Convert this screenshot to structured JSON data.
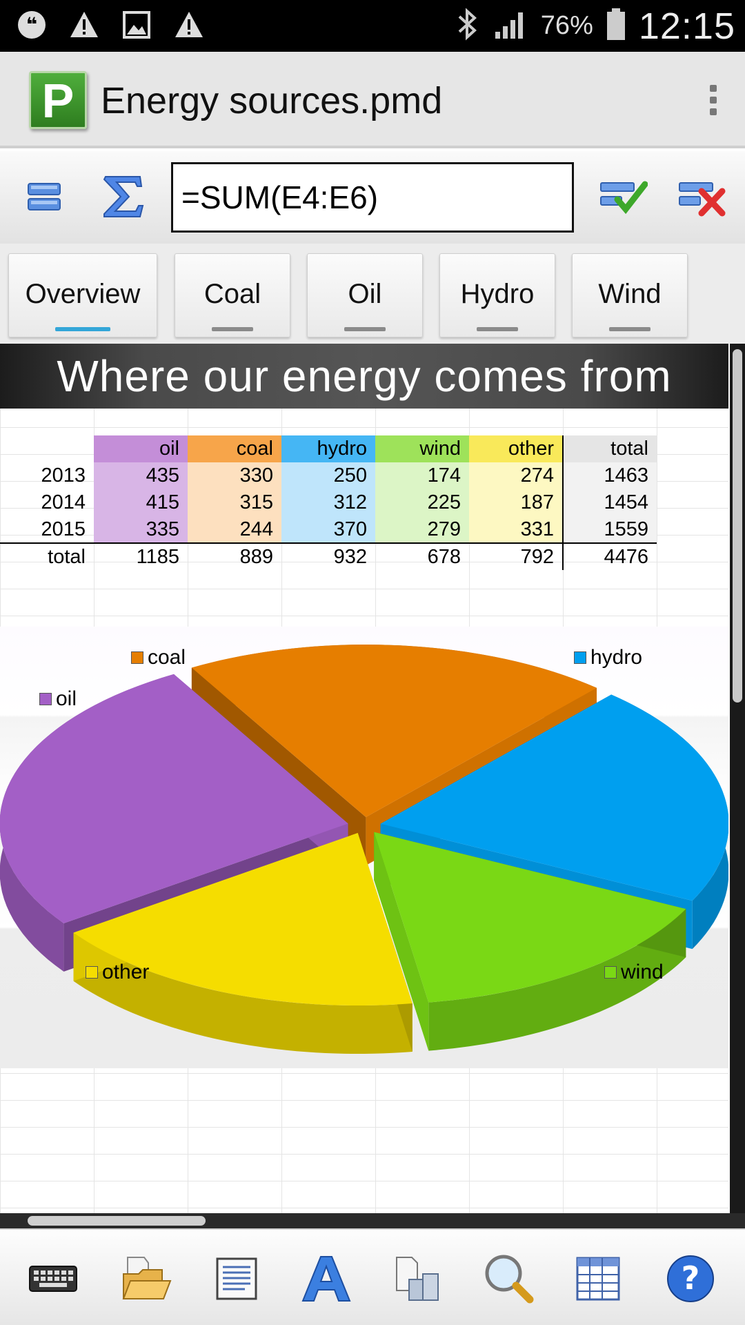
{
  "status_bar": {
    "battery_pct": "76%",
    "time": "12:15",
    "left_icons": [
      "quote-notification-icon",
      "warning-icon",
      "image-icon",
      "warning-icon"
    ],
    "right_icons": [
      "bluetooth-icon",
      "signal-icon",
      "battery-icon"
    ]
  },
  "app_bar": {
    "logo_letter": "P",
    "title": "Energy sources.pmd"
  },
  "formula_bar": {
    "value": "=SUM(E4:E6)"
  },
  "tabs": [
    {
      "label": "Overview",
      "active": true
    },
    {
      "label": "Coal",
      "active": false
    },
    {
      "label": "Oil",
      "active": false
    },
    {
      "label": "Hydro",
      "active": false
    },
    {
      "label": "Wind",
      "active": false
    }
  ],
  "sheet": {
    "title": "Where our energy comes from",
    "header": [
      "",
      "oil",
      "coal",
      "hydro",
      "wind",
      "other",
      "total"
    ],
    "rows": [
      [
        "2013",
        "435",
        "330",
        "250",
        "174",
        "274",
        "1463"
      ],
      [
        "2014",
        "415",
        "315",
        "312",
        "225",
        "187",
        "1454"
      ],
      [
        "2015",
        "335",
        "244",
        "370",
        "279",
        "331",
        "1559"
      ]
    ],
    "total_row": [
      "total",
      "1185",
      "889",
      "932",
      "678",
      "792",
      "4476"
    ]
  },
  "colors": {
    "oil": "#a35fc6",
    "coal": "#e67e00",
    "hydro": "#009fef",
    "wind": "#7ad815",
    "other": "#f5dd00",
    "total": "#e5e5e5"
  },
  "chart_data": {
    "type": "pie",
    "title": "",
    "categories": [
      "oil",
      "coal",
      "hydro",
      "wind",
      "other"
    ],
    "values": [
      1185,
      889,
      932,
      678,
      792
    ],
    "legend": "labels-around"
  },
  "bottom_toolbar": [
    "keyboard-icon",
    "open-folder-icon",
    "document-icon",
    "format-text-icon",
    "objects-icon",
    "search-icon",
    "table-icon",
    "help-icon"
  ]
}
